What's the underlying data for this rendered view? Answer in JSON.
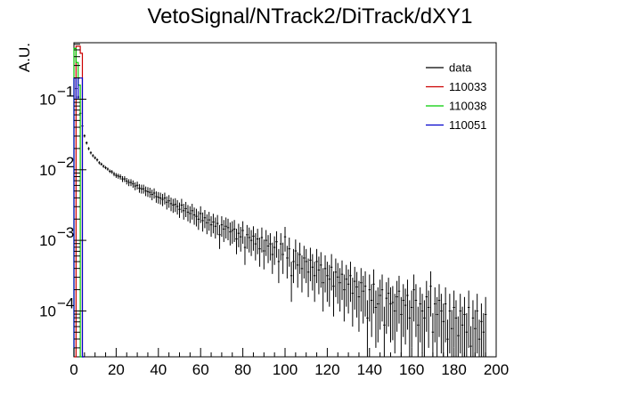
{
  "chart_data": {
    "type": "histogram",
    "title": "VetoSignal/NTrack2/DiTrack/dXY1",
    "xlabel": "",
    "ylabel": "A.U.",
    "xlim": [
      0,
      200
    ],
    "ylim_log10": [
      -4.65,
      -0.2
    ],
    "yscale": "log",
    "x_ticks": [
      "0",
      "20",
      "40",
      "60",
      "80",
      "100",
      "120",
      "140",
      "160",
      "180",
      "200"
    ],
    "y_ticks": [
      {
        "base": "10",
        "exp": "−1",
        "log": -1
      },
      {
        "base": "10",
        "exp": "−2",
        "log": -2
      },
      {
        "base": "10",
        "exp": "−3",
        "log": -3
      },
      {
        "base": "10",
        "exp": "−4",
        "log": -4
      }
    ],
    "legend": {
      "placement": "top-right",
      "entries": [
        {
          "label": "data",
          "color": "#000000"
        },
        {
          "label": "110033",
          "color": "#cc0000"
        },
        {
          "label": "110038",
          "color": "#00cc00"
        },
        {
          "label": "110051",
          "color": "#0000cc"
        }
      ]
    },
    "series": [
      {
        "name": "data",
        "style": "points-with-errors",
        "color": "#000000",
        "x_centers_start": 1,
        "bin_width": 1,
        "values_log10": [
          -0.85,
          -0.97,
          -1.2,
          -1.38,
          -1.52,
          -1.62,
          -1.7,
          -1.76,
          -1.8,
          -1.83,
          -1.86,
          -1.9,
          -1.92,
          -1.95,
          -1.97,
          -1.99,
          -2.02,
          -2.03,
          -2.06,
          -2.08,
          -2.09,
          -2.1,
          -2.13,
          -2.13,
          -2.16,
          -2.18,
          -2.18,
          -2.2,
          -2.23,
          -2.22,
          -2.26,
          -2.27,
          -2.27,
          -2.3,
          -2.31,
          -2.32,
          -2.35,
          -2.33,
          -2.38,
          -2.39,
          -2.4,
          -2.42,
          -2.4,
          -2.46,
          -2.44,
          -2.48,
          -2.5,
          -2.49,
          -2.52,
          -2.56,
          -2.5,
          -2.58,
          -2.55,
          -2.6,
          -2.62,
          -2.58,
          -2.64,
          -2.66,
          -2.7,
          -2.62,
          -2.72,
          -2.68,
          -2.75,
          -2.71,
          -2.78,
          -2.74,
          -2.8,
          -2.76,
          -2.92,
          -2.78,
          -2.84,
          -2.8,
          -2.82,
          -2.88,
          -2.86,
          -2.84,
          -2.98,
          -2.9,
          -2.95,
          -2.86,
          -3.1,
          -2.92,
          -2.96,
          -3.0,
          -2.94,
          -3.05,
          -2.98,
          -3.12,
          -2.96,
          -3.15,
          -3.0,
          -3.08,
          -3.05,
          -3.2,
          -3.1,
          -3.02,
          -3.3,
          -3.05,
          -3.2,
          -2.95,
          -3.25,
          -3.12,
          -3.5,
          -3.3,
          -3.15,
          -3.35,
          -3.2,
          -3.4,
          -3.25,
          -3.3,
          -3.45,
          -3.28,
          -3.38,
          -3.5,
          -3.3,
          -3.42,
          -3.35,
          -3.6,
          -3.4,
          -3.5,
          -3.55,
          -3.38,
          -3.65,
          -3.45,
          -3.52,
          -3.6,
          -3.48,
          -3.7,
          -3.55,
          -3.62,
          -3.5,
          -3.75,
          -3.58,
          -3.66,
          -3.8,
          -3.6,
          -3.72,
          -3.65,
          -4.1,
          -3.7,
          -3.85,
          -3.62,
          -3.95,
          -3.9,
          -3.78,
          -3.7,
          -4.2,
          -3.82,
          -3.75,
          -3.9,
          -3.88,
          -4.0,
          -3.8,
          -3.72,
          -4.05,
          -3.85,
          -3.92,
          -3.78,
          -4.1,
          -3.95,
          -3.7,
          -3.85,
          -4.2,
          -3.9,
          -4.0,
          -4.1,
          -3.8,
          -3.95,
          -3.65,
          -4.3,
          -3.9,
          -4.05,
          -3.85,
          -4.0,
          -4.15,
          -3.9,
          -4.4,
          -4.0,
          -4.25,
          -3.95,
          -4.1,
          -4.35,
          -4.0,
          -4.2,
          -4.05,
          -4.3,
          -3.95,
          -4.5,
          -4.1,
          -4.25,
          -4.0,
          -4.4,
          -4.15,
          -4.3,
          -4.05
        ]
      },
      {
        "name": "110033",
        "style": "step",
        "color": "#cc0000",
        "bins": [
          [
            0,
            1,
            -4.65
          ],
          [
            1,
            2,
            -0.25
          ],
          [
            2,
            3,
            -0.25
          ],
          [
            3,
            4,
            -0.35
          ],
          [
            4,
            5,
            -4.65
          ]
        ]
      },
      {
        "name": "110038",
        "style": "step",
        "color": "#00cc00",
        "bins": [
          [
            0,
            1,
            -0.28
          ],
          [
            1,
            2,
            -0.48
          ],
          [
            2,
            3,
            -0.8
          ],
          [
            3,
            4,
            -4.65
          ]
        ]
      },
      {
        "name": "110051",
        "style": "step",
        "color": "#0000cc",
        "bins": [
          [
            0,
            1,
            -0.7
          ],
          [
            1,
            2,
            -1.0
          ],
          [
            2,
            3,
            -0.7
          ],
          [
            3,
            4,
            -0.7
          ],
          [
            4,
            5,
            -4.65
          ]
        ]
      }
    ]
  }
}
